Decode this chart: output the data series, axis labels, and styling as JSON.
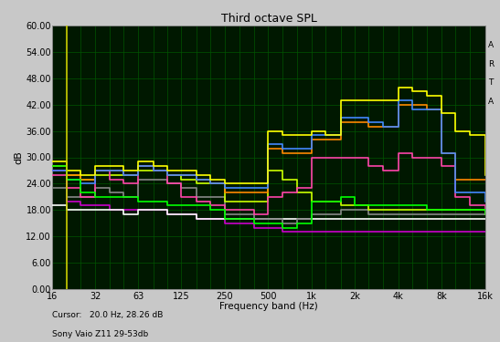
{
  "title": "Third octave SPL",
  "ylabel": "dB",
  "xlabel": "Frequency band (Hz)",
  "bottom_left1": "Cursor:   20.0 Hz, 28.26 dB",
  "bottom_left2": "Sony Vaio Z11 29-53db",
  "arta_text": "A\nR\nT\nA",
  "fig_bg": "#c8c8c8",
  "plot_bg": "#001800",
  "grid_color": "#005500",
  "ylim": [
    0.0,
    60.0
  ],
  "yticks": [
    0.0,
    6.0,
    12.0,
    18.0,
    24.0,
    30.0,
    36.0,
    42.0,
    48.0,
    54.0,
    60.0
  ],
  "freq_bands": [
    16,
    20,
    25,
    31.5,
    40,
    50,
    63,
    80,
    100,
    125,
    160,
    200,
    250,
    315,
    400,
    500,
    630,
    800,
    1000,
    1250,
    1600,
    2000,
    2500,
    3150,
    4000,
    5000,
    6300,
    8000,
    10000,
    12500,
    16000
  ],
  "xtick_labels": [
    "16",
    "32",
    "63",
    "125",
    "250",
    "500",
    "1k",
    "2k",
    "4k",
    "8k",
    "16k"
  ],
  "xtick_positions": [
    16,
    32,
    63,
    125,
    250,
    500,
    1000,
    2000,
    4000,
    8000,
    16000
  ],
  "cursor_freq": 20,
  "cursor_color": "#cccc00",
  "series": [
    {
      "name": "fan_off_purple",
      "color": "#cc00cc",
      "lw": 1.2,
      "data": [
        27,
        20,
        19,
        19,
        18,
        18,
        18,
        18,
        17,
        17,
        16,
        16,
        15,
        15,
        14,
        14,
        13,
        13,
        13,
        13,
        13,
        13,
        13,
        13,
        13,
        13,
        13,
        13,
        13,
        13,
        13
      ]
    },
    {
      "name": "no_load_white",
      "color": "#ffffff",
      "lw": 1.2,
      "data": [
        19,
        18,
        18,
        18,
        18,
        17,
        18,
        18,
        17,
        17,
        16,
        16,
        16,
        16,
        16,
        16,
        16,
        16,
        16,
        16,
        16,
        16,
        16,
        16,
        16,
        16,
        16,
        16,
        16,
        16,
        16
      ]
    },
    {
      "name": "no_load_gray",
      "color": "#888888",
      "lw": 1.2,
      "data": [
        23,
        21,
        21,
        23,
        22,
        21,
        25,
        25,
        24,
        23,
        21,
        21,
        17,
        17,
        16,
        16,
        15,
        16,
        17,
        17,
        18,
        18,
        17,
        17,
        17,
        17,
        17,
        17,
        17,
        17,
        17
      ]
    },
    {
      "name": "no_load_yellow_green",
      "color": "#ccff00",
      "lw": 1.2,
      "data": [
        28,
        26,
        25,
        26,
        26,
        26,
        27,
        27,
        26,
        25,
        24,
        24,
        20,
        20,
        20,
        27,
        25,
        22,
        20,
        20,
        19,
        19,
        18,
        18,
        18,
        18,
        18,
        18,
        18,
        18,
        17
      ]
    },
    {
      "name": "only_graphics_magenta",
      "color": "#ff44aa",
      "lw": 1.2,
      "data": [
        26,
        23,
        21,
        27,
        25,
        24,
        28,
        27,
        24,
        21,
        20,
        19,
        18,
        18,
        17,
        21,
        22,
        23,
        30,
        30,
        30,
        30,
        28,
        27,
        31,
        30,
        30,
        28,
        21,
        19,
        17
      ]
    },
    {
      "name": "games_cpu_orange",
      "color": "#ff8800",
      "lw": 1.2,
      "data": [
        28,
        26,
        25,
        27,
        27,
        26,
        28,
        27,
        26,
        26,
        25,
        24,
        22,
        22,
        22,
        32,
        31,
        31,
        34,
        34,
        38,
        38,
        37,
        37,
        42,
        42,
        41,
        31,
        25,
        25,
        25
      ]
    },
    {
      "name": "games_cpu_blue",
      "color": "#4488ff",
      "lw": 1.2,
      "data": [
        27,
        25,
        24,
        27,
        27,
        26,
        28,
        27,
        26,
        26,
        25,
        24,
        23,
        23,
        23,
        33,
        32,
        32,
        35,
        35,
        39,
        39,
        38,
        37,
        43,
        41,
        41,
        31,
        22,
        22,
        20
      ]
    },
    {
      "name": "extreme_load_yellow",
      "color": "#ffff00",
      "lw": 1.2,
      "data": [
        29,
        27,
        26,
        28,
        28,
        27,
        29,
        28,
        27,
        27,
        26,
        25,
        24,
        24,
        24,
        36,
        35,
        35,
        36,
        35,
        43,
        43,
        43,
        43,
        46,
        45,
        44,
        40,
        36,
        35,
        26
      ]
    },
    {
      "name": "green_line",
      "color": "#00ff00",
      "lw": 1.2,
      "data": [
        28,
        25,
        22,
        21,
        21,
        21,
        20,
        20,
        19,
        19,
        19,
        18,
        16,
        16,
        15,
        15,
        14,
        15,
        20,
        20,
        21,
        19,
        19,
        19,
        19,
        19,
        18,
        18,
        18,
        18,
        17
      ]
    }
  ]
}
